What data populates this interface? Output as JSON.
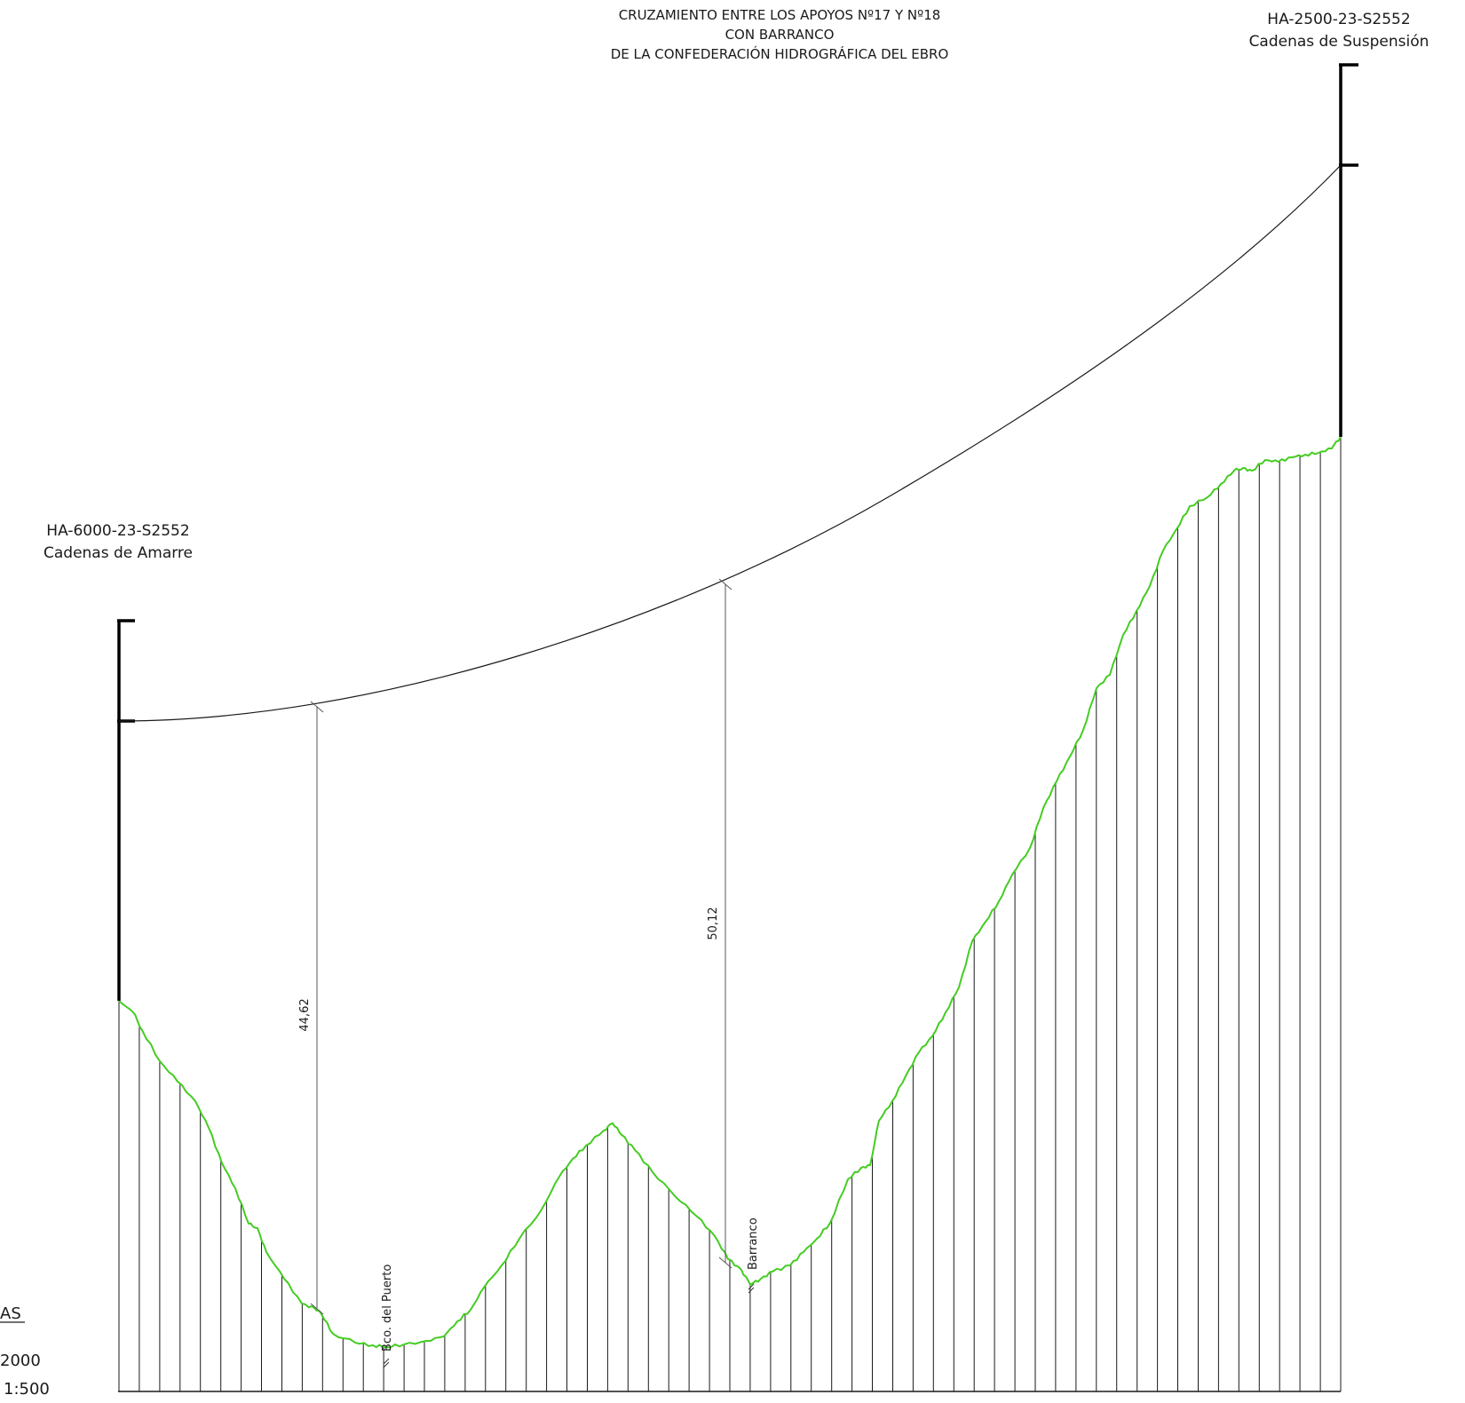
{
  "title": {
    "line1": "CRUZAMIENTO ENTRE LOS APOYOS Nº17 Y Nº18",
    "line2": "CON BARRANCO",
    "line3": "DE LA CONFEDERACIÓN HIDROGRÁFICA DEL EBRO"
  },
  "support_right": {
    "model": "HA-2500-23-S2552",
    "chains": "Cadenas de Suspensión"
  },
  "support_left": {
    "model": "HA-6000-23-S2552",
    "chains": "Cadenas de Amarre"
  },
  "clearances": [
    {
      "label": "44,62"
    },
    {
      "label": "50,12"
    }
  ],
  "crossings": [
    {
      "label": "Bco. del Puerto"
    },
    {
      "label": "Barranco"
    }
  ],
  "scales_block": {
    "heading_fragment": "AS",
    "horizontal": "2000",
    "vertical": "1:500"
  },
  "colors": {
    "terrain": "#44cc22",
    "lines": "#1a1a1a"
  }
}
